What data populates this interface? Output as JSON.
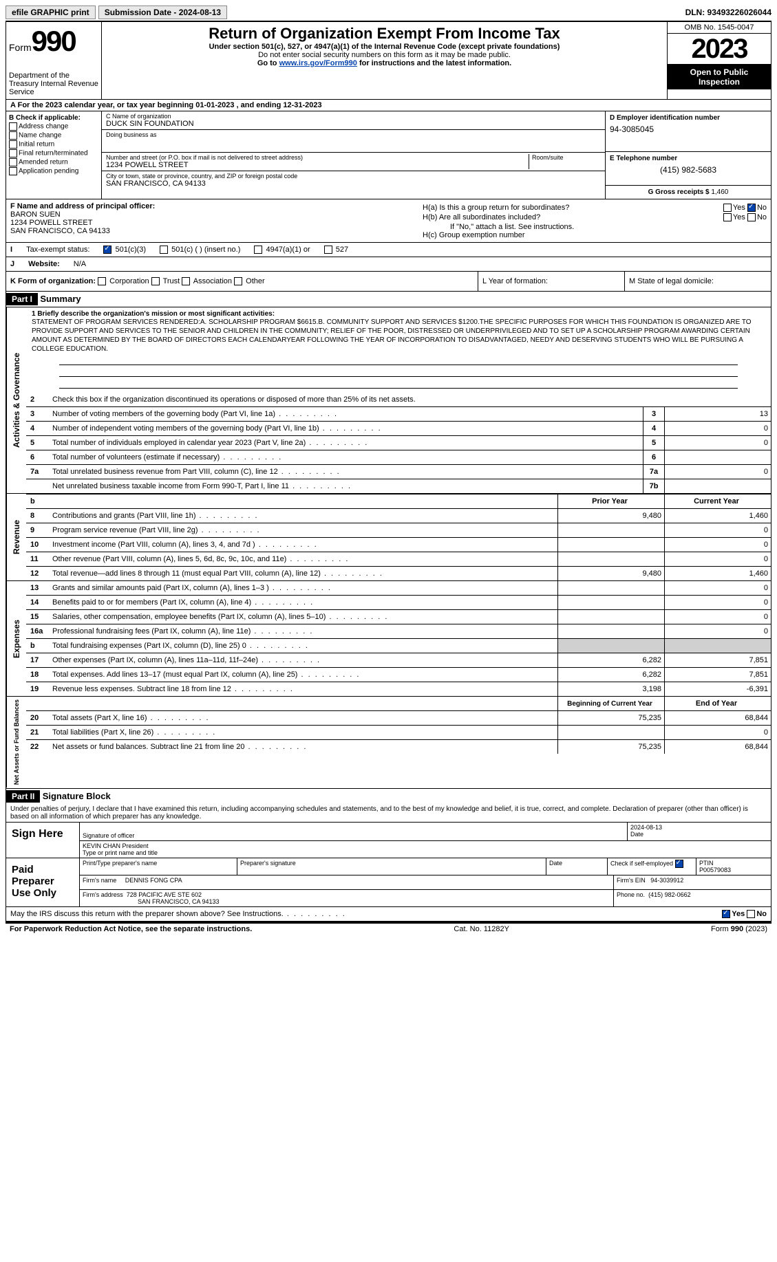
{
  "top": {
    "efile": "efile GRAPHIC print",
    "submission": "Submission Date - 2024-08-13",
    "dln": "DLN: 93493226026044"
  },
  "header": {
    "form": "Form",
    "formnum": "990",
    "title": "Return of Organization Exempt From Income Tax",
    "sub1": "Under section 501(c), 527, or 4947(a)(1) of the Internal Revenue Code (except private foundations)",
    "sub2": "Do not enter social security numbers on this form as it may be made public.",
    "sub3_pre": "Go to ",
    "sub3_link": "www.irs.gov/Form990",
    "sub3_post": " for instructions and the latest information.",
    "dept": "Department of the Treasury Internal Revenue Service",
    "omb": "OMB No. 1545-0047",
    "year": "2023",
    "open": "Open to Public Inspection"
  },
  "rowA": "For the 2023 calendar year, or tax year beginning 01-01-2023    , and ending 12-31-2023",
  "B": {
    "title": "B Check if applicable:",
    "opts": [
      "Address change",
      "Name change",
      "Initial return",
      "Final return/terminated",
      "Amended return",
      "Application pending"
    ]
  },
  "C": {
    "name_lbl": "C Name of organization",
    "name": "DUCK SIN FOUNDATION",
    "dba_lbl": "Doing business as",
    "dba": "",
    "addr_lbl": "Number and street (or P.O. box if mail is not delivered to street address)",
    "room_lbl": "Room/suite",
    "addr": "1234 POWELL STREET",
    "city_lbl": "City or town, state or province, country, and ZIP or foreign postal code",
    "city": "SAN FRANCISCO, CA  94133"
  },
  "D": {
    "lbl": "D Employer identification number",
    "val": "94-3085045"
  },
  "E": {
    "lbl": "E Telephone number",
    "val": "(415) 982-5683"
  },
  "G": {
    "lbl": "G Gross receipts $",
    "val": "1,460"
  },
  "F": {
    "lbl": "F  Name and address of principal officer:",
    "name": "BARON SUEN",
    "addr1": "1234 POWELL STREET",
    "addr2": "SAN FRANCISCO, CA  94133"
  },
  "H": {
    "a": "H(a)  Is this a group return for subordinates?",
    "b": "H(b)  Are all subordinates included?",
    "b_note": "If \"No,\" attach a list. See instructions.",
    "c": "H(c)  Group exemption number",
    "yes": "Yes",
    "no": "No"
  },
  "I": {
    "lbl": "Tax-exempt status:",
    "o1": "501(c)(3)",
    "o2": "501(c) (  ) (insert no.)",
    "o3": "4947(a)(1) or",
    "o4": "527"
  },
  "J": {
    "lbl": "Website:",
    "val": "N/A"
  },
  "K": {
    "lbl": "K Form of organization:",
    "opts": [
      "Corporation",
      "Trust",
      "Association",
      "Other"
    ]
  },
  "L": {
    "lbl": "L Year of formation:"
  },
  "M": {
    "lbl": "M State of legal domicile:"
  },
  "partI": {
    "hdr": "Part I",
    "title": "Summary",
    "tabs": {
      "ag": "Activities & Governance",
      "rev": "Revenue",
      "exp": "Expenses",
      "na": "Net Assets or Fund Balances"
    },
    "l1_lbl": "1  Briefly describe the organization's mission or most significant activities:",
    "l1_text": "STATEMENT OF PROGRAM SERVICES RENDERED:A. SCHOLARSHIP PROGRAM $6615.B. COMMUNITY SUPPORT AND SERVICES $1200.THE SPECIFIC PURPOSES FOR WHICH THIS FOUNDATION IS ORGANIZED ARE TO PROVIDE SUPPORT AND SERVICES TO THE SENIOR AND CHILDREN IN THE COMMUNITY; RELIEF OF THE POOR, DISTRESSED OR UNDERPRIVILEGED AND TO SET UP A SCHOLARSHIP PROGRAM AWARDING CERTAIN AMOUNT AS DETERMINED BY THE BOARD OF DIRECTORS EACH CALENDARYEAR FOLLOWING THE YEAR OF INCORPORATION TO DISADVANTAGED, NEEDY AND DESERVING STUDENTS WHO WILL BE PURSUING A COLLEGE EDUCATION.",
    "l2": "Check this box       if the organization discontinued its operations or disposed of more than 25% of its net assets.",
    "lines_ag": [
      {
        "n": "3",
        "d": "Number of voting members of the governing body (Part VI, line 1a)",
        "bn": "3",
        "bv": "13"
      },
      {
        "n": "4",
        "d": "Number of independent voting members of the governing body (Part VI, line 1b)",
        "bn": "4",
        "bv": "0"
      },
      {
        "n": "5",
        "d": "Total number of individuals employed in calendar year 2023 (Part V, line 2a)",
        "bn": "5",
        "bv": "0"
      },
      {
        "n": "6",
        "d": "Total number of volunteers (estimate if necessary)",
        "bn": "6",
        "bv": ""
      },
      {
        "n": "7a",
        "d": "Total unrelated business revenue from Part VIII, column (C), line 12",
        "bn": "7a",
        "bv": "0"
      },
      {
        "n": "",
        "d": "Net unrelated business taxable income from Form 990-T, Part I, line 11",
        "bn": "7b",
        "bv": ""
      }
    ],
    "col_py": "Prior Year",
    "col_cy": "Current Year",
    "lines_rev": [
      {
        "n": "8",
        "d": "Contributions and grants (Part VIII, line 1h)",
        "py": "9,480",
        "cy": "1,460"
      },
      {
        "n": "9",
        "d": "Program service revenue (Part VIII, line 2g)",
        "py": "",
        "cy": "0"
      },
      {
        "n": "10",
        "d": "Investment income (Part VIII, column (A), lines 3, 4, and 7d )",
        "py": "",
        "cy": "0"
      },
      {
        "n": "11",
        "d": "Other revenue (Part VIII, column (A), lines 5, 6d, 8c, 9c, 10c, and 11e)",
        "py": "",
        "cy": "0"
      },
      {
        "n": "12",
        "d": "Total revenue—add lines 8 through 11 (must equal Part VIII, column (A), line 12)",
        "py": "9,480",
        "cy": "1,460"
      }
    ],
    "lines_exp": [
      {
        "n": "13",
        "d": "Grants and similar amounts paid (Part IX, column (A), lines 1–3 )",
        "py": "",
        "cy": "0"
      },
      {
        "n": "14",
        "d": "Benefits paid to or for members (Part IX, column (A), line 4)",
        "py": "",
        "cy": "0"
      },
      {
        "n": "15",
        "d": "Salaries, other compensation, employee benefits (Part IX, column (A), lines 5–10)",
        "py": "",
        "cy": "0"
      },
      {
        "n": "16a",
        "d": "Professional fundraising fees (Part IX, column (A), line 11e)",
        "py": "",
        "cy": "0"
      },
      {
        "n": "b",
        "d": "Total fundraising expenses (Part IX, column (D), line 25) 0",
        "py": "gray",
        "cy": "gray"
      },
      {
        "n": "17",
        "d": "Other expenses (Part IX, column (A), lines 11a–11d, 11f–24e)",
        "py": "6,282",
        "cy": "7,851"
      },
      {
        "n": "18",
        "d": "Total expenses. Add lines 13–17 (must equal Part IX, column (A), line 25)",
        "py": "6,282",
        "cy": "7,851"
      },
      {
        "n": "19",
        "d": "Revenue less expenses. Subtract line 18 from line 12",
        "py": "3,198",
        "cy": "-6,391"
      }
    ],
    "col_bcy": "Beginning of Current Year",
    "col_eoy": "End of Year",
    "lines_na": [
      {
        "n": "20",
        "d": "Total assets (Part X, line 16)",
        "py": "75,235",
        "cy": "68,844"
      },
      {
        "n": "21",
        "d": "Total liabilities (Part X, line 26)",
        "py": "",
        "cy": "0"
      },
      {
        "n": "22",
        "d": "Net assets or fund balances. Subtract line 21 from line 20",
        "py": "75,235",
        "cy": "68,844"
      }
    ]
  },
  "partII": {
    "hdr": "Part II",
    "title": "Signature Block",
    "perjury": "Under penalties of perjury, I declare that I have examined this return, including accompanying schedules and statements, and to the best of my knowledge and belief, it is true, correct, and complete. Declaration of preparer (other than officer) is based on all information of which preparer has any knowledge.",
    "sign_here": "Sign Here",
    "sig_officer_lbl": "Signature of officer",
    "sig_date": "2024-08-13",
    "date_lbl": "Date",
    "officer": "KEVIN CHAN  President",
    "officer_lbl": "Type or print name and title",
    "paid": "Paid Preparer Use Only",
    "prep_name_lbl": "Print/Type preparer's name",
    "prep_sig_lbl": "Preparer's signature",
    "prep_date_lbl": "Date",
    "check_if": "Check         if self-employed",
    "ptin_lbl": "PTIN",
    "ptin": "P00579083",
    "firm_name_lbl": "Firm's name",
    "firm_name": "DENNIS FONG CPA",
    "firm_ein_lbl": "Firm's EIN",
    "firm_ein": "94-3039912",
    "firm_addr_lbl": "Firm's address",
    "firm_addr": "728 PACIFIC AVE STE 602",
    "firm_city": "SAN FRANCISCO, CA  94133",
    "phone_lbl": "Phone no.",
    "phone": "(415) 982-0662",
    "discuss": "May the IRS discuss this return with the preparer shown above? See Instructions."
  },
  "footer": {
    "pra": "For Paperwork Reduction Act Notice, see the separate instructions.",
    "cat": "Cat. No. 11282Y",
    "form": "Form 990 (2023)"
  }
}
